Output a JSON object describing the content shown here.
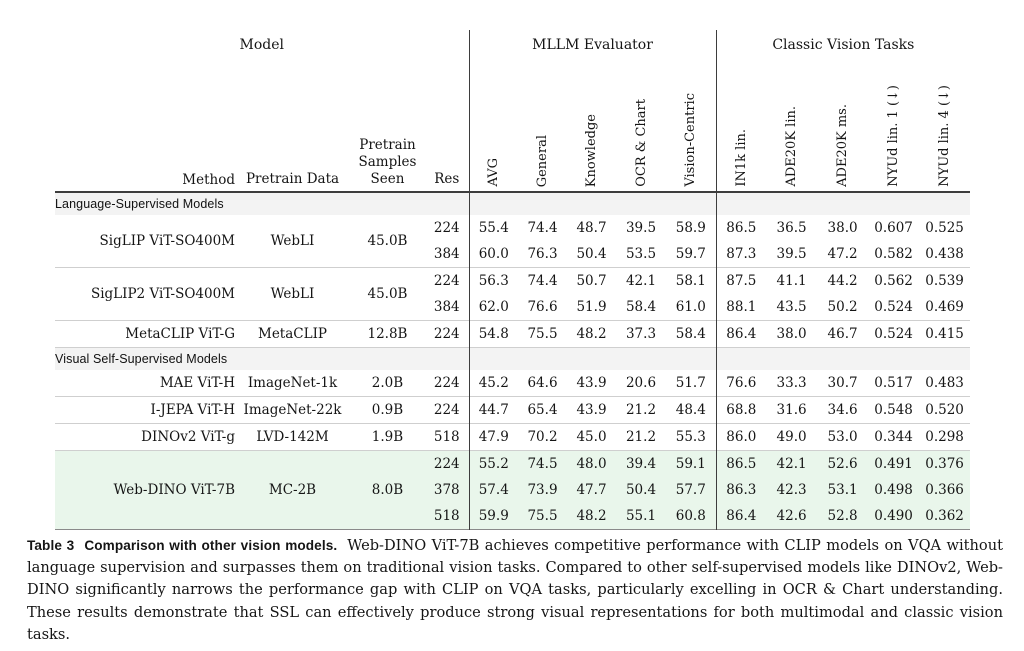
{
  "table": {
    "groups": [
      {
        "label": "Model"
      },
      {
        "label": "MLLM Evaluator"
      },
      {
        "label": "Classic Vision Tasks"
      }
    ],
    "model_columns": [
      "Method",
      "Pretrain Data",
      "Pretrain Samples Seen",
      "Res"
    ],
    "metric_columns": [
      "AVG",
      "General",
      "Knowledge",
      "OCR & Chart",
      "Vision-Centric",
      "IN1k lin.",
      "ADE20K lin.",
      "ADE20K ms.",
      "NYUd lin. 1 (↓)",
      "NYUd lin. 4 (↓)"
    ],
    "sections": [
      {
        "label": "Language-Supervised Models",
        "groups": [
          {
            "method": "SigLIP ViT-SO400M",
            "pretrain_data": "WebLI",
            "samples": "45.0B",
            "highlight": false,
            "rows": [
              {
                "res": "224",
                "values": [
                  "55.4",
                  "74.4",
                  "48.7",
                  "39.5",
                  "58.9",
                  "86.5",
                  "36.5",
                  "38.0",
                  "0.607",
                  "0.525"
                ]
              },
              {
                "res": "384",
                "values": [
                  "60.0",
                  "76.3",
                  "50.4",
                  "53.5",
                  "59.7",
                  "87.3",
                  "39.5",
                  "47.2",
                  "0.582",
                  "0.438"
                ]
              }
            ]
          },
          {
            "method": "SigLIP2 ViT-SO400M",
            "pretrain_data": "WebLI",
            "samples": "45.0B",
            "highlight": false,
            "rows": [
              {
                "res": "224",
                "values": [
                  "56.3",
                  "74.4",
                  "50.7",
                  "42.1",
                  "58.1",
                  "87.5",
                  "41.1",
                  "44.2",
                  "0.562",
                  "0.539"
                ]
              },
              {
                "res": "384",
                "values": [
                  "62.0",
                  "76.6",
                  "51.9",
                  "58.4",
                  "61.0",
                  "88.1",
                  "43.5",
                  "50.2",
                  "0.524",
                  "0.469"
                ]
              }
            ]
          },
          {
            "method": "MetaCLIP ViT-G",
            "pretrain_data": "MetaCLIP",
            "samples": "12.8B",
            "highlight": false,
            "rows": [
              {
                "res": "224",
                "values": [
                  "54.8",
                  "75.5",
                  "48.2",
                  "37.3",
                  "58.4",
                  "86.4",
                  "38.0",
                  "46.7",
                  "0.524",
                  "0.415"
                ]
              }
            ]
          }
        ]
      },
      {
        "label": "Visual Self-Supervised Models",
        "groups": [
          {
            "method": "MAE ViT-H",
            "pretrain_data": "ImageNet-1k",
            "samples": "2.0B",
            "highlight": false,
            "rows": [
              {
                "res": "224",
                "values": [
                  "45.2",
                  "64.6",
                  "43.9",
                  "20.6",
                  "51.7",
                  "76.6",
                  "33.3",
                  "30.7",
                  "0.517",
                  "0.483"
                ]
              }
            ]
          },
          {
            "method": "I-JEPA ViT-H",
            "pretrain_data": "ImageNet-22k",
            "samples": "0.9B",
            "highlight": false,
            "rows": [
              {
                "res": "224",
                "values": [
                  "44.7",
                  "65.4",
                  "43.9",
                  "21.2",
                  "48.4",
                  "68.8",
                  "31.6",
                  "34.6",
                  "0.548",
                  "0.520"
                ]
              }
            ]
          },
          {
            "method": "DINOv2 ViT-g",
            "pretrain_data": "LVD-142M",
            "samples": "1.9B",
            "highlight": false,
            "rows": [
              {
                "res": "518",
                "values": [
                  "47.9",
                  "70.2",
                  "45.0",
                  "21.2",
                  "55.3",
                  "86.0",
                  "49.0",
                  "53.0",
                  "0.344",
                  "0.298"
                ]
              }
            ]
          },
          {
            "method": "Web-DINO ViT-7B",
            "pretrain_data": "MC-2B",
            "samples": "8.0B",
            "highlight": true,
            "rows": [
              {
                "res": "224",
                "values": [
                  "55.2",
                  "74.5",
                  "48.0",
                  "39.4",
                  "59.1",
                  "86.5",
                  "42.1",
                  "52.6",
                  "0.491",
                  "0.376"
                ]
              },
              {
                "res": "378",
                "values": [
                  "57.4",
                  "73.9",
                  "47.7",
                  "50.4",
                  "57.7",
                  "86.3",
                  "42.3",
                  "53.1",
                  "0.498",
                  "0.366"
                ]
              },
              {
                "res": "518",
                "values": [
                  "59.9",
                  "75.5",
                  "48.2",
                  "55.1",
                  "60.8",
                  "86.4",
                  "42.6",
                  "52.8",
                  "0.490",
                  "0.362"
                ]
              }
            ]
          }
        ]
      }
    ]
  },
  "caption": {
    "label": "Table 3",
    "title": "Comparison with other vision models.",
    "body": "Web-DINO ViT-7B achieves competitive performance with CLIP models on VQA without language supervision and surpasses them on traditional vision tasks. Compared to other self-supervised models like DINOv2, Web-DINO significantly narrows the performance gap with CLIP on VQA tasks, particularly excelling in OCR & Chart understanding. These results demonstrate that SSL can effectively produce strong visual representations for both multimodal and classic vision tasks."
  }
}
